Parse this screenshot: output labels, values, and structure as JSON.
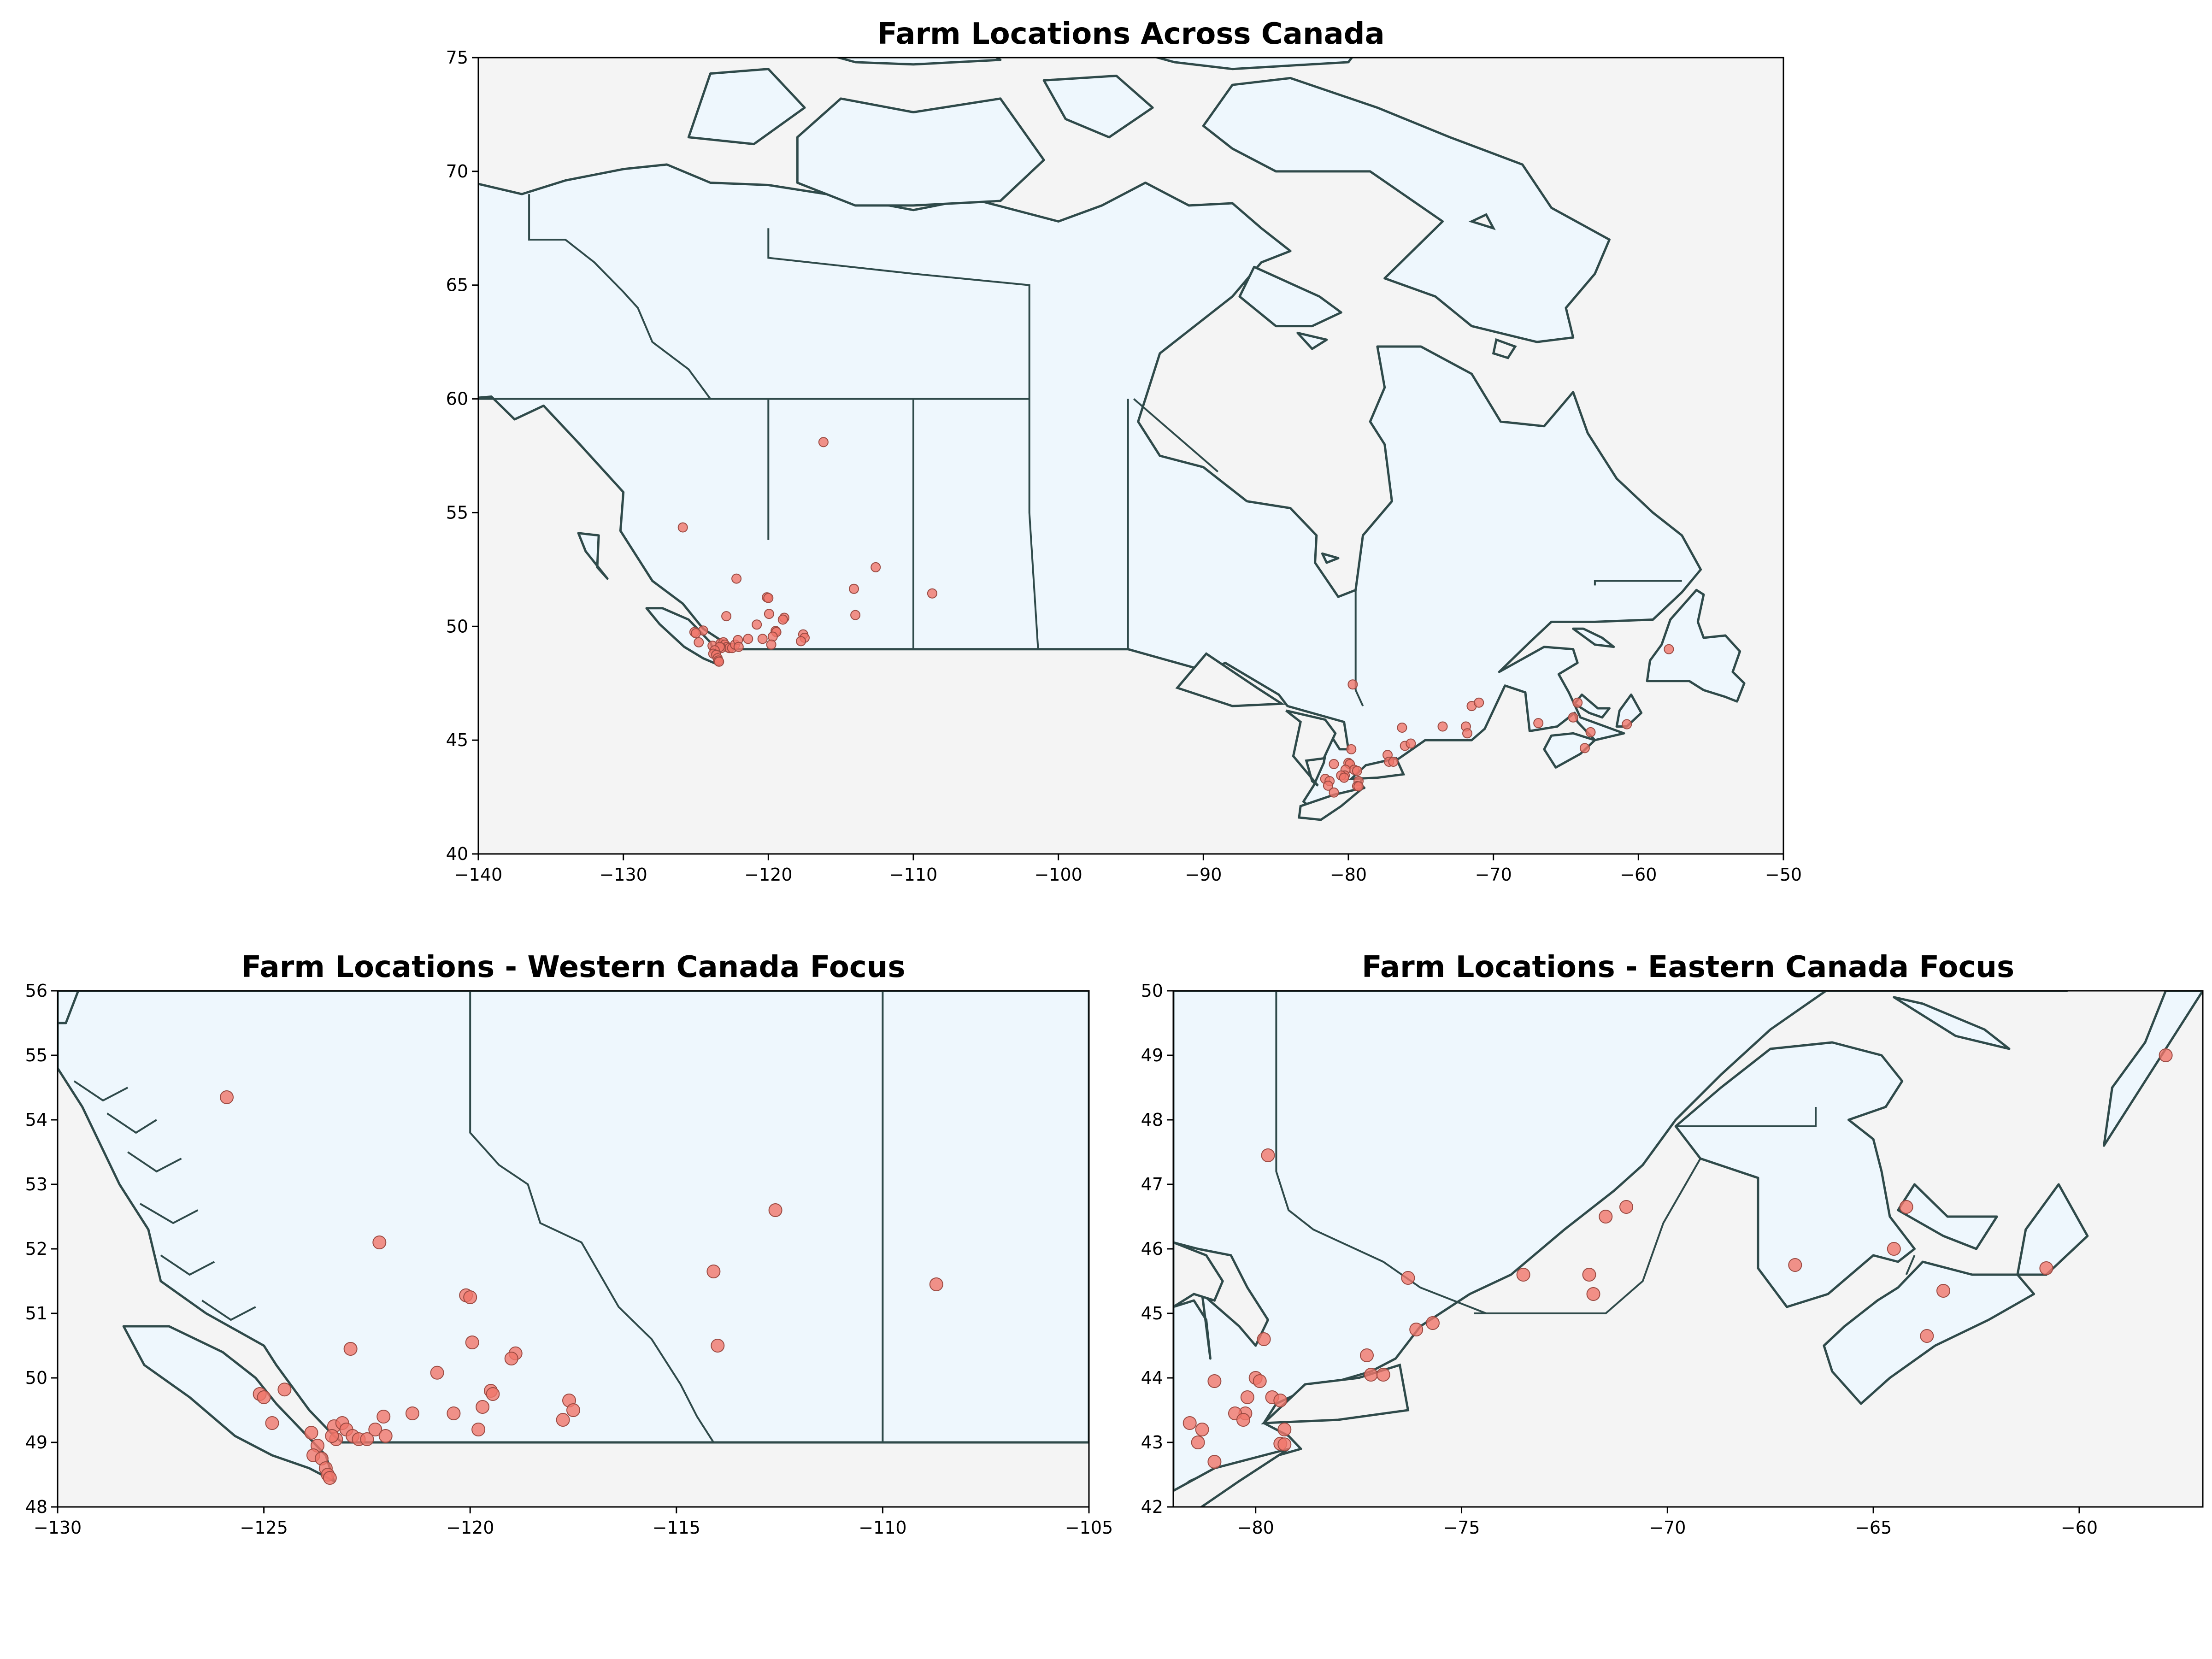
{
  "chart_data": [
    {
      "type": "scatter",
      "title": "Farm Locations Across Canada",
      "xlabel": "",
      "ylabel": "",
      "xlim": [
        -140,
        -50
      ],
      "ylim": [
        40,
        75
      ],
      "xticks": [
        -140,
        -130,
        -120,
        -110,
        -100,
        -90,
        -80,
        -70,
        -60,
        -50
      ],
      "yticks": [
        40,
        45,
        50,
        55,
        60,
        65,
        70,
        75
      ],
      "xtick_labels": [
        "−140",
        "−130",
        "−120",
        "−110",
        "−100",
        "−90",
        "−80",
        "−70",
        "−60",
        "−50"
      ],
      "ytick_labels": [
        "40",
        "45",
        "50",
        "55",
        "60",
        "65",
        "70",
        "75"
      ],
      "grid": false,
      "legend": "none"
    },
    {
      "type": "scatter",
      "title": "Farm Locations - Western Canada Focus",
      "xlabel": "",
      "ylabel": "",
      "xlim": [
        -130,
        -105
      ],
      "ylim": [
        48,
        56
      ],
      "xticks": [
        -130,
        -125,
        -120,
        -115,
        -110,
        -105
      ],
      "yticks": [
        48,
        49,
        50,
        51,
        52,
        53,
        54,
        55,
        56
      ],
      "xtick_labels": [
        "−130",
        "−125",
        "−120",
        "−115",
        "−110",
        "−105"
      ],
      "ytick_labels": [
        "48",
        "49",
        "50",
        "51",
        "52",
        "53",
        "54",
        "55",
        "56"
      ],
      "grid": false,
      "legend": "none"
    },
    {
      "type": "scatter",
      "title": "Farm Locations - Eastern Canada Focus",
      "xlabel": "",
      "ylabel": "",
      "xlim": [
        -82,
        -57
      ],
      "ylim": [
        42,
        50
      ],
      "xticks": [
        -80,
        -75,
        -70,
        -65,
        -60
      ],
      "yticks": [
        42,
        43,
        44,
        45,
        46,
        47,
        48,
        49,
        50
      ],
      "xtick_labels": [
        "−80",
        "−75",
        "−70",
        "−65",
        "−60"
      ],
      "ytick_labels": [
        "42",
        "43",
        "44",
        "45",
        "46",
        "47",
        "48",
        "49",
        "50"
      ],
      "grid": false,
      "legend": "none"
    }
  ],
  "farms": [
    {
      "lon": -125.9,
      "lat": 54.35
    },
    {
      "lon": -122.2,
      "lat": 52.1
    },
    {
      "lon": -120.1,
      "lat": 51.28
    },
    {
      "lon": -120.0,
      "lat": 51.25
    },
    {
      "lon": -119.95,
      "lat": 50.55
    },
    {
      "lon": -122.9,
      "lat": 50.45
    },
    {
      "lon": -120.8,
      "lat": 50.08
    },
    {
      "lon": -119.5,
      "lat": 49.8
    },
    {
      "lon": -119.45,
      "lat": 49.75
    },
    {
      "lon": -118.9,
      "lat": 50.38
    },
    {
      "lon": -119.0,
      "lat": 50.3
    },
    {
      "lon": -119.7,
      "lat": 49.55
    },
    {
      "lon": -120.4,
      "lat": 49.45
    },
    {
      "lon": -121.4,
      "lat": 49.45
    },
    {
      "lon": -119.8,
      "lat": 49.2
    },
    {
      "lon": -117.6,
      "lat": 49.65
    },
    {
      "lon": -117.5,
      "lat": 49.5
    },
    {
      "lon": -117.75,
      "lat": 49.35
    },
    {
      "lon": -124.5,
      "lat": 49.82
    },
    {
      "lon": -125.1,
      "lat": 49.75
    },
    {
      "lon": -125.0,
      "lat": 49.7
    },
    {
      "lon": -124.8,
      "lat": 49.3
    },
    {
      "lon": -123.85,
      "lat": 49.15
    },
    {
      "lon": -123.3,
      "lat": 49.25
    },
    {
      "lon": -123.1,
      "lat": 49.3
    },
    {
      "lon": -123.0,
      "lat": 49.2
    },
    {
      "lon": -122.85,
      "lat": 49.1
    },
    {
      "lon": -122.7,
      "lat": 49.05
    },
    {
      "lon": -122.5,
      "lat": 49.05
    },
    {
      "lon": -122.3,
      "lat": 49.2
    },
    {
      "lon": -122.1,
      "lat": 49.4
    },
    {
      "lon": -122.05,
      "lat": 49.1
    },
    {
      "lon": -123.25,
      "lat": 49.05
    },
    {
      "lon": -123.35,
      "lat": 49.1
    },
    {
      "lon": -123.7,
      "lat": 48.95
    },
    {
      "lon": -123.8,
      "lat": 48.8
    },
    {
      "lon": -123.6,
      "lat": 48.75
    },
    {
      "lon": -123.5,
      "lat": 48.6
    },
    {
      "lon": -123.45,
      "lat": 48.5
    },
    {
      "lon": -123.4,
      "lat": 48.45
    },
    {
      "lon": -112.6,
      "lat": 52.6
    },
    {
      "lon": -114.1,
      "lat": 51.65
    },
    {
      "lon": -114.0,
      "lat": 50.5
    },
    {
      "lon": -108.7,
      "lat": 51.45
    },
    {
      "lon": -116.2,
      "lat": 58.1
    },
    {
      "lon": -79.7,
      "lat": 47.45
    },
    {
      "lon": -79.8,
      "lat": 44.6
    },
    {
      "lon": -80.0,
      "lat": 44.0
    },
    {
      "lon": -79.9,
      "lat": 43.95
    },
    {
      "lon": -79.6,
      "lat": 43.7
    },
    {
      "lon": -79.4,
      "lat": 43.65
    },
    {
      "lon": -80.2,
      "lat": 43.7
    },
    {
      "lon": -80.25,
      "lat": 43.45
    },
    {
      "lon": -80.5,
      "lat": 43.45
    },
    {
      "lon": -80.3,
      "lat": 43.35
    },
    {
      "lon": -81.0,
      "lat": 43.95
    },
    {
      "lon": -81.6,
      "lat": 43.3
    },
    {
      "lon": -81.3,
      "lat": 43.2
    },
    {
      "lon": -81.4,
      "lat": 43.0
    },
    {
      "lon": -81.0,
      "lat": 42.7
    },
    {
      "lon": -79.3,
      "lat": 43.2
    },
    {
      "lon": -79.4,
      "lat": 42.98
    },
    {
      "lon": -79.3,
      "lat": 42.97
    },
    {
      "lon": -77.3,
      "lat": 44.35
    },
    {
      "lon": -77.2,
      "lat": 44.05
    },
    {
      "lon": -76.9,
      "lat": 44.05
    },
    {
      "lon": -76.3,
      "lat": 45.55
    },
    {
      "lon": -76.1,
      "lat": 44.75
    },
    {
      "lon": -75.7,
      "lat": 44.85
    },
    {
      "lon": -73.5,
      "lat": 45.6
    },
    {
      "lon": -71.9,
      "lat": 45.6
    },
    {
      "lon": -71.8,
      "lat": 45.3
    },
    {
      "lon": -71.5,
      "lat": 46.5
    },
    {
      "lon": -71.0,
      "lat": 46.65
    },
    {
      "lon": -66.9,
      "lat": 45.75
    },
    {
      "lon": -64.5,
      "lat": 46.0
    },
    {
      "lon": -64.2,
      "lat": 46.65
    },
    {
      "lon": -63.3,
      "lat": 45.35
    },
    {
      "lon": -63.7,
      "lat": 44.65
    },
    {
      "lon": -60.8,
      "lat": 45.7
    },
    {
      "lon": -57.9,
      "lat": 49.0
    }
  ]
}
